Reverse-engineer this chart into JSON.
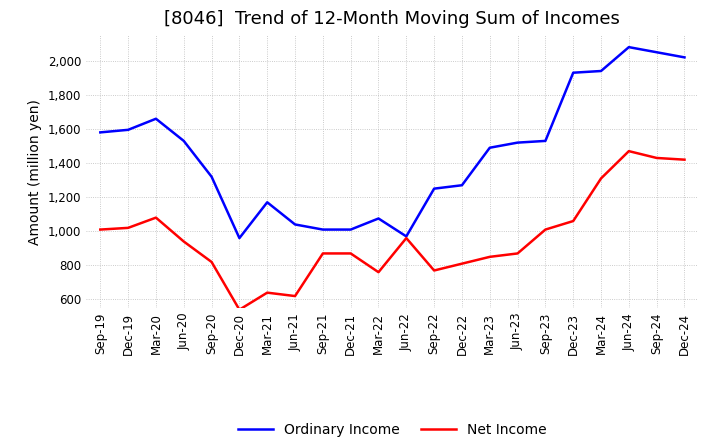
{
  "title": "[8046]  Trend of 12-Month Moving Sum of Incomes",
  "ylabel": "Amount (million yen)",
  "ylim": [
    550,
    2150
  ],
  "yticks": [
    600,
    800,
    1000,
    1200,
    1400,
    1600,
    1800,
    2000
  ],
  "x_labels": [
    "Sep-19",
    "Dec-19",
    "Mar-20",
    "Jun-20",
    "Sep-20",
    "Dec-20",
    "Mar-21",
    "Jun-21",
    "Sep-21",
    "Dec-21",
    "Mar-22",
    "Jun-22",
    "Sep-22",
    "Dec-22",
    "Mar-23",
    "Jun-23",
    "Sep-23",
    "Dec-23",
    "Mar-24",
    "Jun-24",
    "Sep-24",
    "Dec-24"
  ],
  "ordinary_income": [
    1580,
    1595,
    1660,
    1530,
    1320,
    960,
    1170,
    1040,
    1010,
    1010,
    1075,
    970,
    1250,
    1270,
    1490,
    1520,
    1530,
    1930,
    1940,
    2080,
    2050,
    2020
  ],
  "net_income": [
    1010,
    1020,
    1080,
    940,
    820,
    540,
    640,
    620,
    870,
    870,
    760,
    960,
    770,
    810,
    850,
    870,
    1010,
    1060,
    1310,
    1470,
    1430,
    1420
  ],
  "ordinary_color": "#0000ff",
  "net_color": "#ff0000",
  "grid_color": "#bbbbbb",
  "background_color": "#ffffff",
  "title_fontsize": 13,
  "axis_fontsize": 10,
  "tick_fontsize": 8.5,
  "legend_fontsize": 10
}
